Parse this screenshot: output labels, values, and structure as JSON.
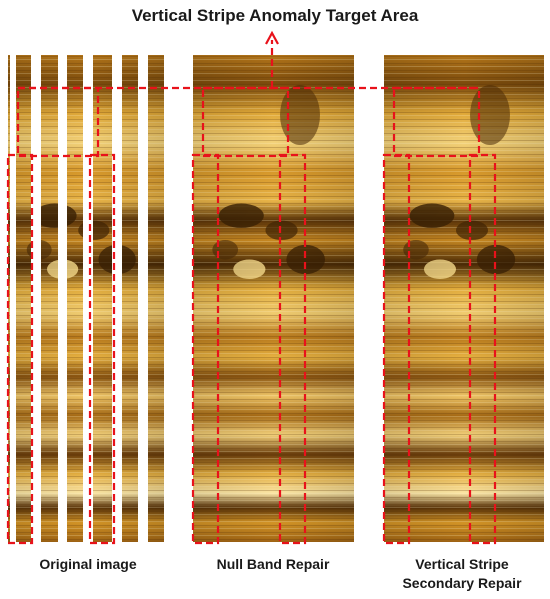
{
  "title": "Vertical Stripe Anomaly Target Area",
  "panels": [
    {
      "id": "original",
      "caption_lines": [
        "Original image"
      ]
    },
    {
      "id": "null-band",
      "caption_lines": [
        "Null Band Repair"
      ]
    },
    {
      "id": "secondary",
      "caption_lines": [
        "Vertical Stripe",
        "Secondary Repair"
      ]
    }
  ],
  "colors": {
    "annotation_red": "#e8121b",
    "image_base": "#c98a1c",
    "image_light": "#f3d27a",
    "image_dark": "#4a2a06",
    "null_band": "#ffffff"
  }
}
